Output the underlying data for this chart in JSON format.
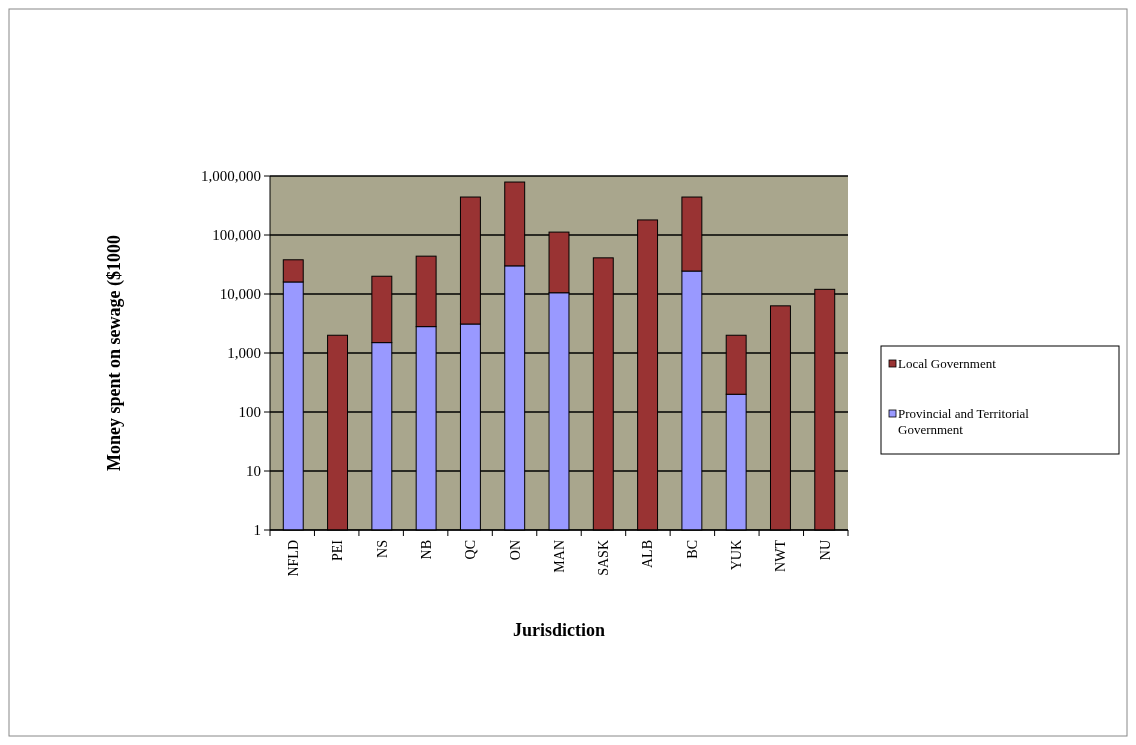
{
  "chart_data": {
    "type": "bar",
    "stacked": true,
    "log": true,
    "xlabel": "Jurisdiction",
    "ylabel": "Money spent on sewage ($1000",
    "categories": [
      "NFLD",
      "PEI",
      "NS",
      "NB",
      "QC",
      "ON",
      "MAN",
      "SASK",
      "ALB",
      "BC",
      "YUK",
      "NWT",
      "NU"
    ],
    "series": [
      {
        "name": "Provincial and Territorial Government",
        "color": "#9999ff",
        "values": [
          16000,
          null,
          1500,
          2800,
          3100,
          30000,
          10500,
          null,
          null,
          24500,
          200,
          null,
          null
        ]
      },
      {
        "name": "Local Government",
        "color": "#993333",
        "values": [
          22000,
          2000,
          18500,
          41000,
          437000,
          760000,
          101500,
          41000,
          180000,
          415500,
          1800,
          6300,
          12000
        ]
      }
    ],
    "ylim": [
      1,
      1000000
    ],
    "yticks": [
      1,
      10,
      100,
      {
        "value": 1000,
        "label": "1,000"
      },
      {
        "value": 10000,
        "label": "10,000"
      },
      {
        "value": 100000,
        "label": "100,000"
      },
      {
        "value": 1000000,
        "label": "1,000,000"
      }
    ],
    "grid": "y",
    "legend": "right"
  }
}
